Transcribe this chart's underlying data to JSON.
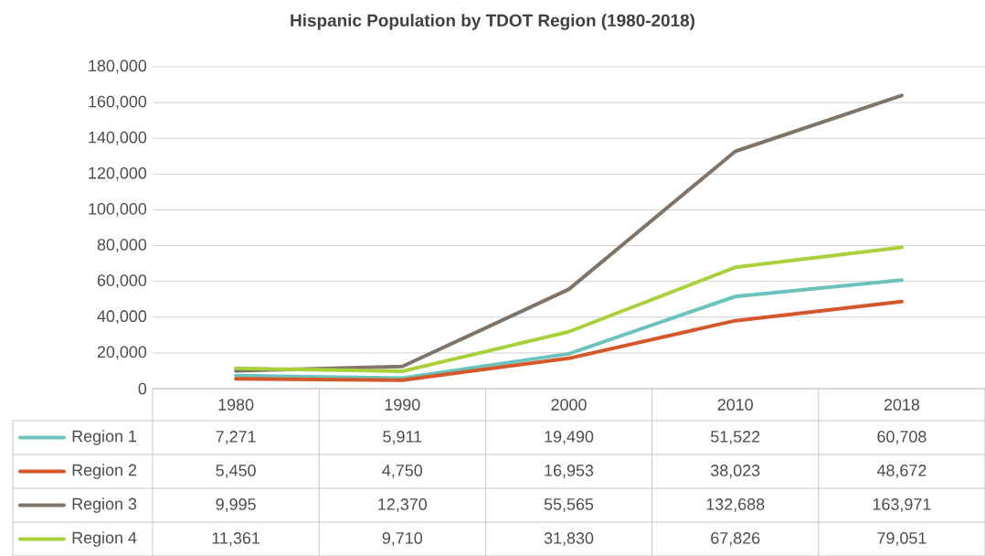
{
  "chart_data": {
    "type": "line",
    "title": "Hispanic Population by TDOT Region (1980-2018)",
    "categories": [
      "1980",
      "1990",
      "2000",
      "2010",
      "2018"
    ],
    "series": [
      {
        "name": "Region 1",
        "color": "#6cc3bd",
        "values": [
          7271,
          5911,
          19490,
          51522,
          60708
        ],
        "value_labels": [
          "7,271",
          "5,911",
          "19,490",
          "51,522",
          "60,708"
        ]
      },
      {
        "name": "Region 2",
        "color": "#d5582b",
        "values": [
          5450,
          4750,
          16953,
          38023,
          48672
        ],
        "value_labels": [
          "5,450",
          "4,750",
          "16,953",
          "38,023",
          "48,672"
        ]
      },
      {
        "name": "Region 3",
        "color": "#807469",
        "values": [
          9995,
          12370,
          55565,
          132688,
          163971
        ],
        "value_labels": [
          "9,995",
          "12,370",
          "55,565",
          "132,688",
          "163,971"
        ]
      },
      {
        "name": "Region 4",
        "color": "#a9d13b",
        "values": [
          11361,
          9710,
          31830,
          67826,
          79051
        ],
        "value_labels": [
          "11,361",
          "9,710",
          "31,830",
          "67,826",
          "79,051"
        ]
      }
    ],
    "ylim": [
      0,
      180000
    ],
    "yticks": [
      {
        "value": 0,
        "label": "0"
      },
      {
        "value": 20000,
        "label": "20,000"
      },
      {
        "value": 40000,
        "label": "40,000"
      },
      {
        "value": 60000,
        "label": "60,000"
      },
      {
        "value": 80000,
        "label": "80,000"
      },
      {
        "value": 100000,
        "label": "100,000"
      },
      {
        "value": 120000,
        "label": "120,000"
      },
      {
        "value": 140000,
        "label": "140,000"
      },
      {
        "value": 160000,
        "label": "160,000"
      },
      {
        "value": 180000,
        "label": "180,000"
      }
    ],
    "grid": "y",
    "legend": "bottom",
    "marker": "none",
    "line_style": "solid"
  }
}
